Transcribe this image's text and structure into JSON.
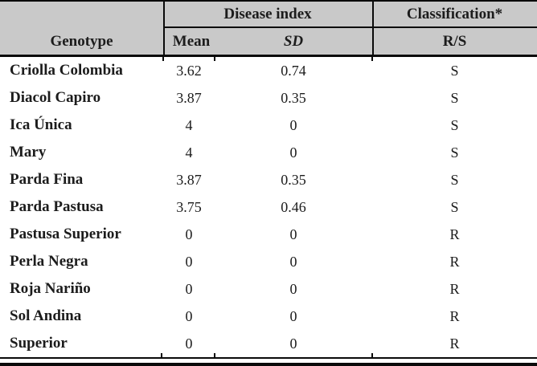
{
  "table": {
    "header": {
      "genotype": "Genotype",
      "disease_index_group": "Disease index",
      "classification_group": "Classification*",
      "mean": "Mean",
      "sd": "SD",
      "rs": "R/S"
    },
    "rows": [
      {
        "genotype": "Criolla Colombia",
        "mean": "3.62",
        "sd": "0.74",
        "rs": "S"
      },
      {
        "genotype": "Diacol Capiro",
        "mean": "3.87",
        "sd": "0.35",
        "rs": "S"
      },
      {
        "genotype": "Ica Única",
        "mean": "4",
        "sd": "0",
        "rs": "S"
      },
      {
        "genotype": "Mary",
        "mean": "4",
        "sd": "0",
        "rs": "S"
      },
      {
        "genotype": "Parda Fina",
        "mean": "3.87",
        "sd": "0.35",
        "rs": "S"
      },
      {
        "genotype": "Parda Pastusa",
        "mean": "3.75",
        "sd": "0.46",
        "rs": "S"
      },
      {
        "genotype": "Pastusa Superior",
        "mean": "0",
        "sd": "0",
        "rs": "R"
      },
      {
        "genotype": "Perla Negra",
        "mean": "0",
        "sd": "0",
        "rs": "R"
      },
      {
        "genotype": "Roja Nariño",
        "mean": "0",
        "sd": "0",
        "rs": "R"
      },
      {
        "genotype": "Sol Andina",
        "mean": "0",
        "sd": "0",
        "rs": "R"
      },
      {
        "genotype": "Superior",
        "mean": "0",
        "sd": "0",
        "rs": "R"
      }
    ]
  },
  "colors": {
    "header_bg": "#c9c9c9",
    "rule": "#0a0a0a",
    "text": "#1c1c1c"
  }
}
